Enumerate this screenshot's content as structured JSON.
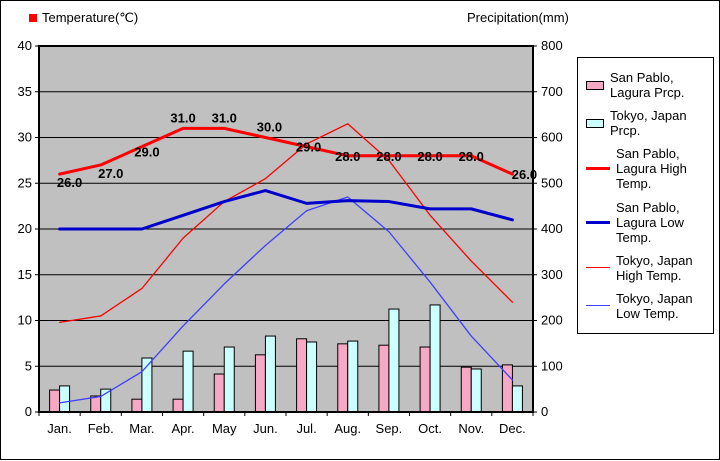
{
  "titles": {
    "left": "Temperature(℃)",
    "right": "Precipitation(mm)"
  },
  "legend": {
    "items": [
      {
        "label": "San Pablo, Lagura Prcp.",
        "swatch": "bar",
        "color": "#f7a8c4"
      },
      {
        "label": "Tokyo, Japan Prcp.",
        "swatch": "bar",
        "color": "#ccffff"
      },
      {
        "label": "San Pablo, Lagura High Temp.",
        "swatch": "line-thick",
        "color": "#ff0000"
      },
      {
        "label": "San Pablo, Lagura Low Temp.",
        "swatch": "line-thick",
        "color": "#0000cc"
      },
      {
        "label": "Tokyo, Japan High Temp.",
        "swatch": "line-thin",
        "color": "#ff0000"
      },
      {
        "label": "Tokyo, Japan Low Temp.",
        "swatch": "line-thin",
        "color": "#4040ff"
      }
    ]
  },
  "chart_data": {
    "type": "bar+line",
    "title": "",
    "plot_bg": "#c0c0c0",
    "grid": true,
    "legend_position": "right",
    "categories": [
      "Jan.",
      "Feb.",
      "Mar.",
      "Apr.",
      "May",
      "Jun.",
      "Jul.",
      "Aug.",
      "Sep.",
      "Oct.",
      "Nov.",
      "Dec."
    ],
    "temp_axis": {
      "title": "Temperature(℃)",
      "min": 0,
      "max": 40,
      "step": 5,
      "tick_labels": [
        "40",
        "35",
        "30",
        "25",
        "20",
        "15",
        "10",
        "5",
        "0"
      ]
    },
    "precip_axis": {
      "title": "Precipitation(mm)",
      "min": 0,
      "max": 800,
      "step": 100,
      "tick_labels": [
        "800",
        "700",
        "600",
        "500",
        "400",
        "300",
        "200",
        "100",
        "0"
      ]
    },
    "bar_series": [
      {
        "name": "San Pablo, Lagura Prcp.",
        "color": "#f7a8c4",
        "values": [
          48,
          35,
          28,
          28,
          83,
          125,
          160,
          149,
          146,
          142,
          98,
          103
        ]
      },
      {
        "name": "Tokyo, Japan Prcp.",
        "color": "#ccffff",
        "values": [
          57,
          50,
          118,
          133,
          142,
          166,
          153,
          155,
          225,
          234,
          94,
          57
        ]
      }
    ],
    "line_series": [
      {
        "name": "San Pablo, Lagura High Temp.",
        "color": "#ff0000",
        "width": 3,
        "values": [
          26,
          27,
          29,
          31,
          31,
          30,
          29,
          28,
          28,
          28,
          28,
          26
        ],
        "point_labels": [
          "26.0",
          "27.0",
          "29.0",
          "31.0",
          "31.0",
          "30.0",
          "29.0",
          "28.0",
          "28.0",
          "28.0",
          "28.0",
          "26.0"
        ]
      },
      {
        "name": "San Pablo, Lagura Low Temp.",
        "color": "#0000cc",
        "width": 3,
        "values": [
          20,
          20,
          20,
          21.5,
          23,
          24.2,
          22.8,
          23.1,
          23,
          22.2,
          22.2,
          21
        ]
      },
      {
        "name": "Tokyo, Japan High Temp.",
        "color": "#ff0000",
        "width": 1.3,
        "values": [
          9.8,
          10.5,
          13.5,
          19,
          23,
          25.5,
          29.3,
          31.5,
          27.5,
          21.5,
          16.5,
          12
        ]
      },
      {
        "name": "Tokyo, Japan Low Temp.",
        "color": "#4040ff",
        "width": 1.3,
        "values": [
          1,
          1.7,
          4.4,
          9.4,
          14,
          18.2,
          22,
          23.5,
          19.7,
          14.2,
          8.3,
          3.5
        ]
      }
    ]
  }
}
